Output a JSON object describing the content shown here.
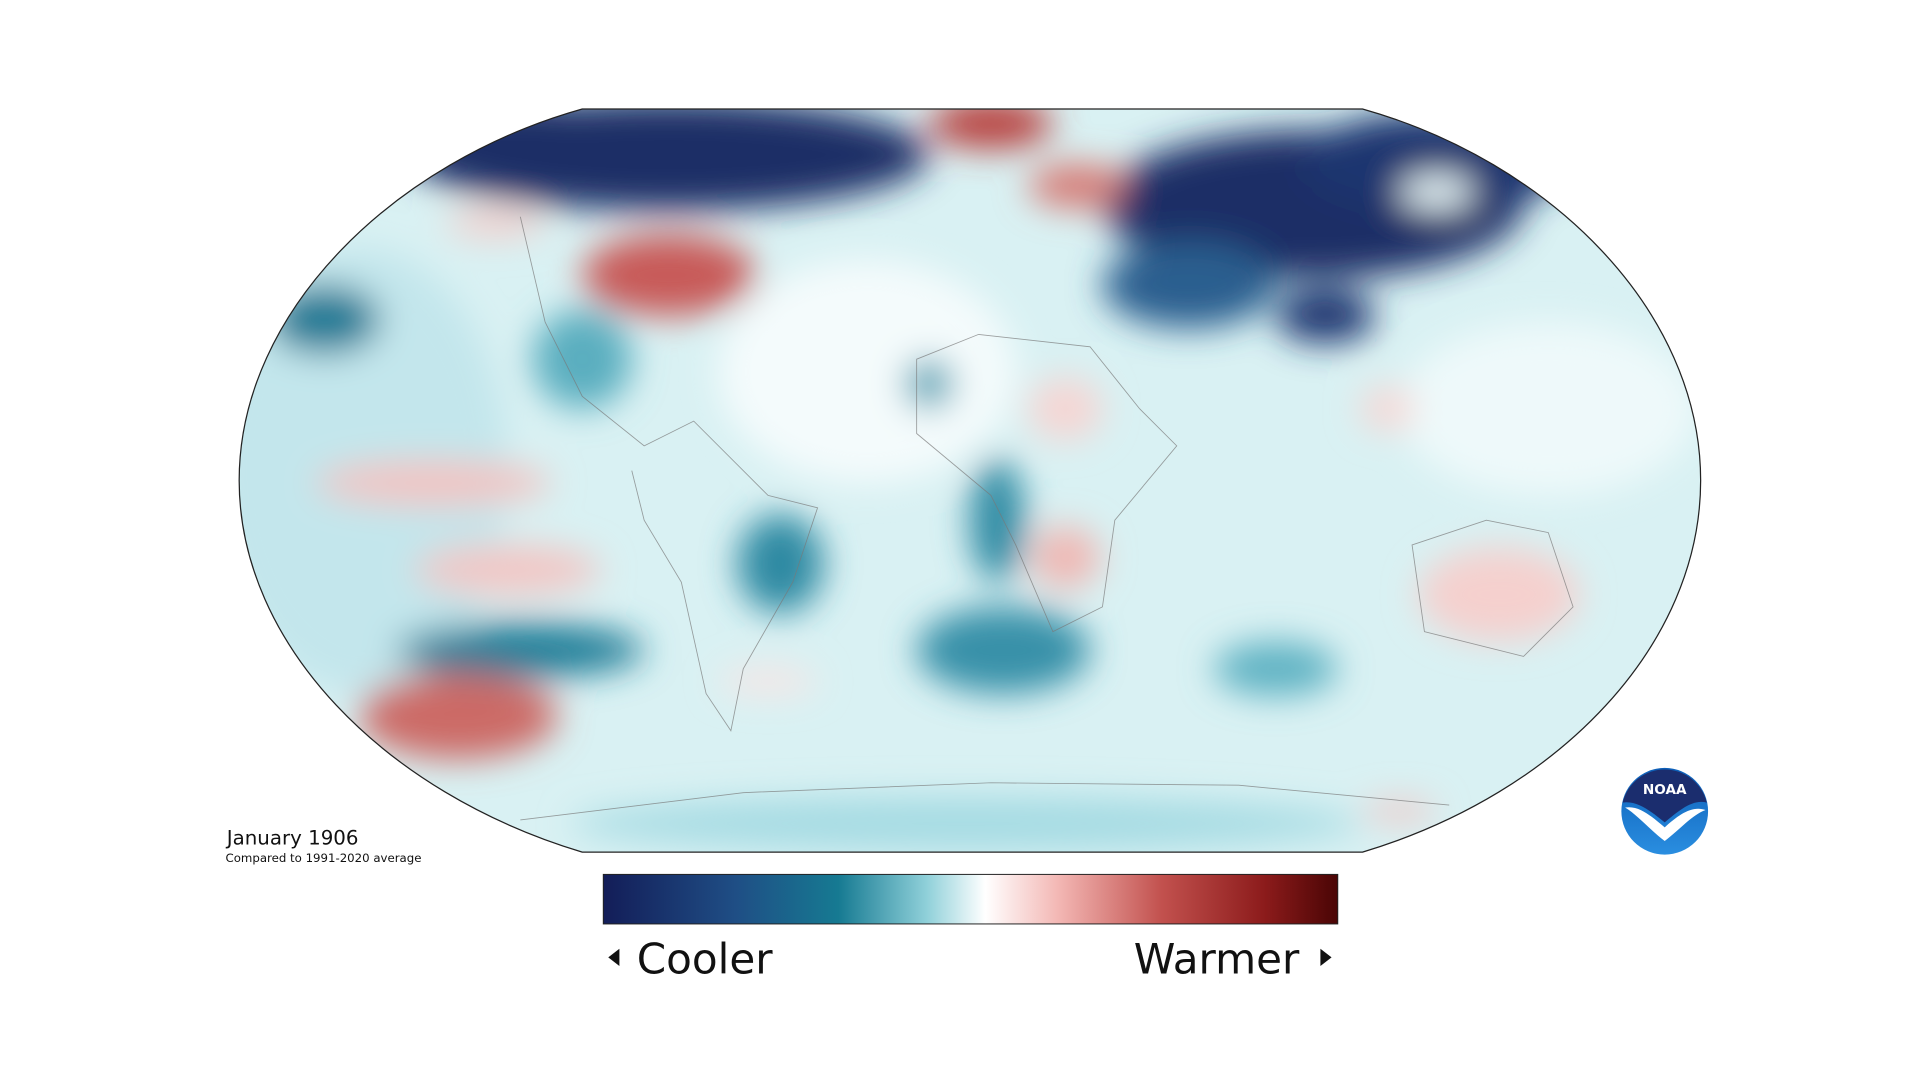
{
  "header": {
    "title": "January 1906",
    "subtitle": "Compared to 1991-2020 average"
  },
  "legend": {
    "low_label": "Cooler",
    "high_label": "Warmer"
  },
  "logo": {
    "text": "NOAA"
  }
}
